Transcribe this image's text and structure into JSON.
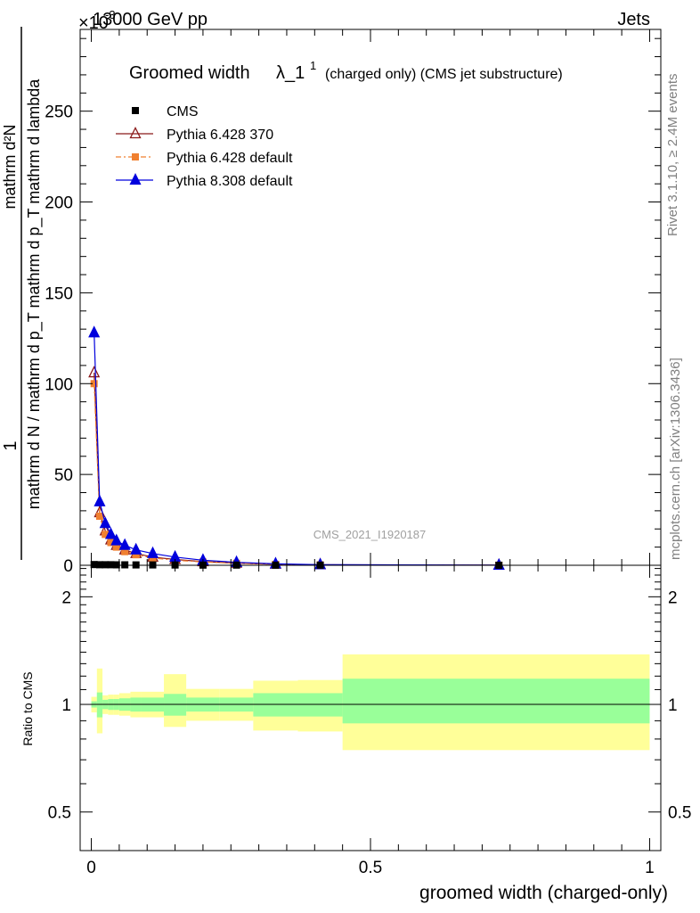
{
  "header": {
    "left": "13000 GeV pp",
    "right": "Jets",
    "exponent": "×10",
    "exponent_power": "-3"
  },
  "side_labels": {
    "rivet": "Rivet 3.1.10, ≥ 2.4M events",
    "mcplots": "mcplots.cern.ch [arXiv:1306.3436]"
  },
  "watermark": "CMS_2021_I1920187",
  "chart_data": [
    {
      "type": "line",
      "title": "Groomed width λ_1¹ (charged only) (CMS jet substructure)",
      "title_main": "Groomed width",
      "title_lambda": "λ_1",
      "title_sup": "1",
      "title_rest": "(charged only) (CMS jet substructure)",
      "ylabel_numerator": "1",
      "ylabel_numerator_fraction": "mathrm d²N",
      "ylabel_denominator": "mathrm d N / mathrm d p_T mathrm d p_T mathrm d lambda",
      "xlim": [
        -0.02,
        1.02
      ],
      "ylim": [
        0,
        295
      ],
      "y_ticks": [
        0,
        50,
        100,
        150,
        200,
        250
      ],
      "y_tick_labels": [
        "0",
        "50",
        "100",
        "150",
        "200",
        "250"
      ],
      "legend_position": "top-left",
      "grid": false,
      "series": [
        {
          "name": "CMS",
          "color": "#000000",
          "marker": "square",
          "x": [
            0.005,
            0.015,
            0.025,
            0.035,
            0.045,
            0.06,
            0.08,
            0.11,
            0.15,
            0.2,
            0.26,
            0.33,
            0.41,
            0.73
          ],
          "y": [
            0.4,
            0.3,
            0.3,
            0.3,
            0.25,
            0.25,
            0.2,
            0.2,
            0.15,
            0.1,
            0.1,
            0.05,
            0.05,
            0.01
          ]
        },
        {
          "name": "Pythia 6.428 370",
          "color": "#8b1a1a",
          "marker": "open-triangle",
          "x": [
            0.005,
            0.015,
            0.025,
            0.035,
            0.045,
            0.06,
            0.08,
            0.11,
            0.15,
            0.2,
            0.26,
            0.33,
            0.41,
            0.73
          ],
          "y": [
            106,
            29,
            19,
            14,
            11,
            8.5,
            6.5,
            4.5,
            3.2,
            2.0,
            1.2,
            0.6,
            0.3,
            0.05
          ]
        },
        {
          "name": "Pythia 6.428 default",
          "color": "#f08030",
          "marker": "square",
          "x": [
            0.005,
            0.015,
            0.025,
            0.035,
            0.045,
            0.06,
            0.08,
            0.11,
            0.15,
            0.2,
            0.26,
            0.33,
            0.41,
            0.73
          ],
          "y": [
            100,
            27,
            17,
            12.5,
            10,
            7.5,
            5.8,
            4.0,
            2.8,
            1.8,
            1.1,
            0.5,
            0.25,
            0.04
          ]
        },
        {
          "name": "Pythia 8.308 default",
          "color": "#0000dd",
          "marker": "triangle",
          "x": [
            0.005,
            0.015,
            0.025,
            0.035,
            0.045,
            0.06,
            0.08,
            0.11,
            0.15,
            0.2,
            0.26,
            0.33,
            0.41,
            0.73
          ],
          "y": [
            128,
            35,
            23,
            17,
            13.5,
            11,
            8.5,
            6.5,
            4.5,
            2.8,
            1.6,
            0.8,
            0.35,
            0.06
          ]
        }
      ]
    },
    {
      "type": "area",
      "ylabel": "Ratio to CMS",
      "xlabel": "groomed width (charged-only)",
      "xlim": [
        -0.02,
        1.02
      ],
      "ylim": [
        0.39,
        2.45
      ],
      "y_scale": "log",
      "x_ticks": [
        0,
        0.5,
        1
      ],
      "x_tick_labels": [
        "0",
        "0.5",
        "1"
      ],
      "y_ticks": [
        0.5,
        1,
        2
      ],
      "y_tick_labels": [
        "0.5",
        "1",
        "2"
      ],
      "reference_line": 1,
      "bins": [
        0,
        0.01,
        0.02,
        0.03,
        0.04,
        0.05,
        0.07,
        0.09,
        0.13,
        0.17,
        0.23,
        0.29,
        0.37,
        0.45,
        1.0
      ],
      "inner_band": {
        "color": "#99ff99",
        "low": [
          0.98,
          0.92,
          0.97,
          0.965,
          0.965,
          0.96,
          0.955,
          0.955,
          0.93,
          0.955,
          0.955,
          0.925,
          0.925,
          0.885
        ],
        "high": [
          1.02,
          1.08,
          1.03,
          1.035,
          1.035,
          1.04,
          1.045,
          1.045,
          1.07,
          1.045,
          1.045,
          1.075,
          1.075,
          1.18
        ]
      },
      "outer_band": {
        "color": "#ffff99",
        "low": [
          0.95,
          0.83,
          0.94,
          0.935,
          0.935,
          0.93,
          0.92,
          0.92,
          0.865,
          0.9,
          0.9,
          0.845,
          0.84,
          0.745
        ],
        "high": [
          1.05,
          1.26,
          1.06,
          1.065,
          1.065,
          1.075,
          1.085,
          1.085,
          1.215,
          1.105,
          1.105,
          1.165,
          1.17,
          1.38
        ]
      }
    }
  ]
}
